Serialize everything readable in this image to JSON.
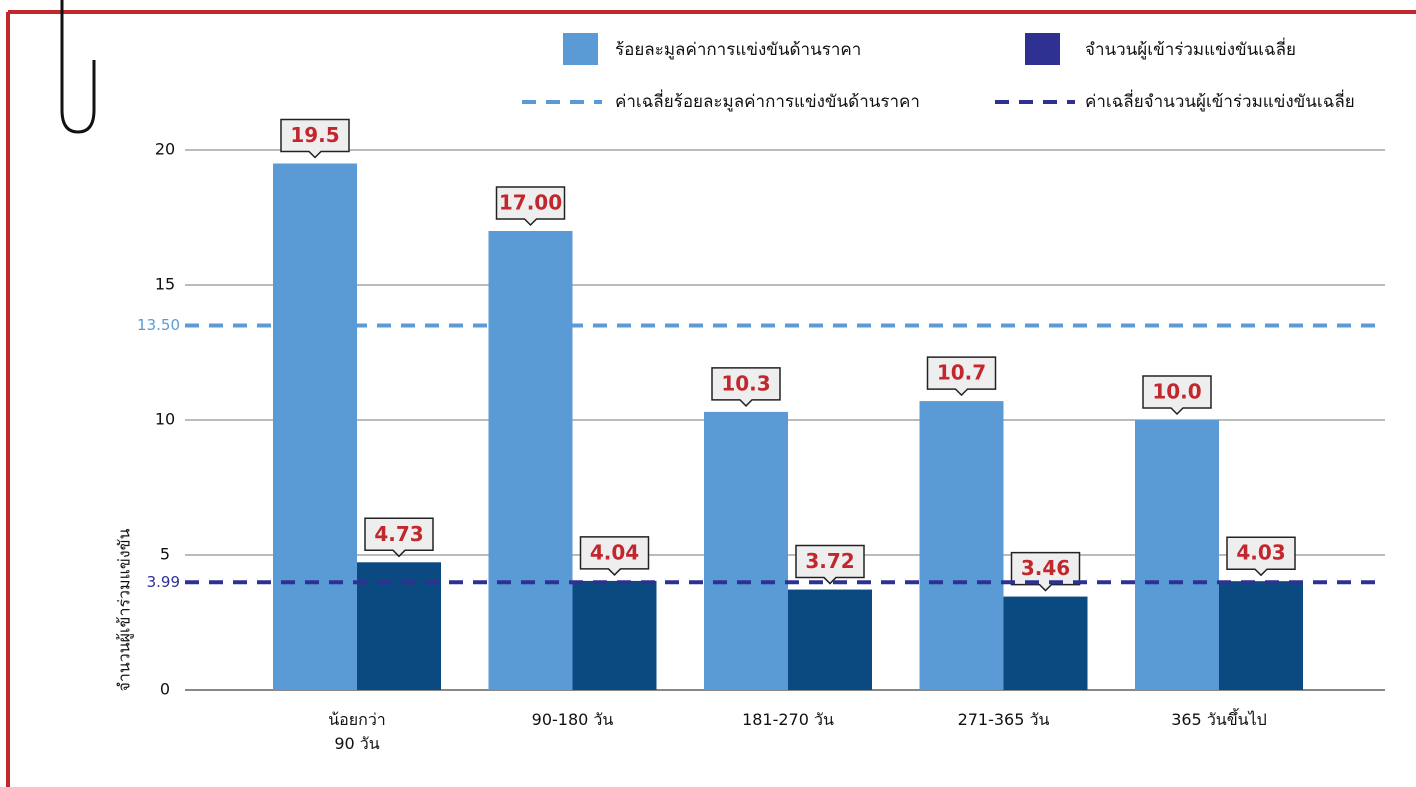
{
  "chart_data": {
    "type": "bar",
    "y_label": "จำนวนผู้เข้าร่วมแข่งขัน",
    "categories": [
      "น้อยกว่า\n90 วัน",
      "90-180 วัน",
      "181-270 วัน",
      "271-365 วัน",
      "365 วันขึ้นไป"
    ],
    "series": [
      {
        "name": "ร้อยละมูลค่าการแข่งขันด้านราคา",
        "color": "#5b9bd5",
        "values": [
          19.5,
          17,
          10.3,
          10.7,
          10
        ],
        "value_labels": [
          "19.5",
          "17.00",
          "10.3",
          "10.7",
          "10.0"
        ]
      },
      {
        "name": "จำนวนผู้เข้าร่วมแข่งขันเฉลี่ย",
        "color": "#0b4a80",
        "legend_color": "#2e3192",
        "values": [
          4.73,
          4.04,
          3.72,
          3.46,
          4.03
        ]
      }
    ],
    "reference_lines": [
      {
        "name": "ค่าเฉลี่ยร้อยละมูลค่าการแข่งขันด้านราคา",
        "value": 13.5,
        "label": "13.50",
        "color": "#5b9bd5"
      },
      {
        "name": "ค่าเฉลี่ยจำนวนผู้เข้าร่วมแข่งขันเฉลี่ย",
        "value": 3.99,
        "label": "3.99",
        "color": "#2e3192"
      }
    ],
    "ylim": [
      0,
      20
    ],
    "yticks": [
      0,
      5,
      10,
      15,
      20
    ],
    "grid": true,
    "value_label_color": "#c1272d"
  }
}
